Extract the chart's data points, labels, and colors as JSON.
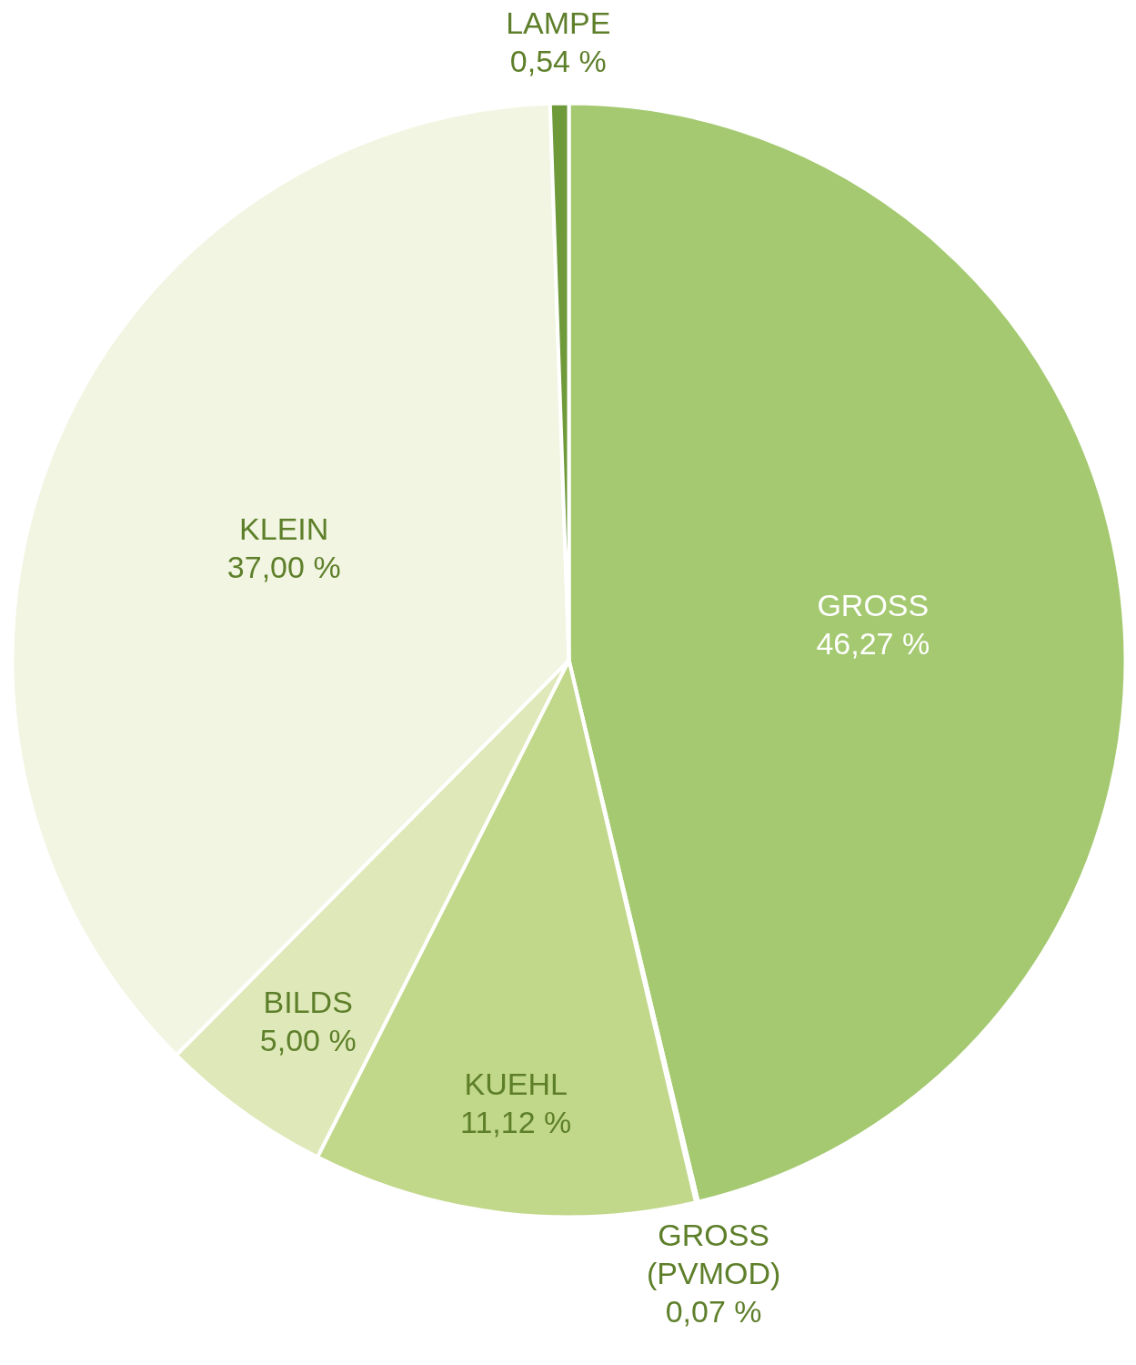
{
  "chart_data": {
    "type": "pie",
    "categories": [
      "GROSS",
      "GROSS (PVMOD)",
      "KUEHL",
      "BILDS",
      "KLEIN",
      "LAMPE"
    ],
    "values": [
      46.27,
      0.07,
      11.12,
      5.0,
      37.0,
      0.54
    ],
    "value_labels": [
      "46,27 %",
      "0,07 %",
      "11,12 %",
      "5,00 %",
      "37,00 %",
      "0,54 %"
    ],
    "colors": [
      "#a4c970",
      "#7ea94a",
      "#c1d78a",
      "#dee8b8",
      "#f1f5e1",
      "#6f9a3a"
    ]
  }
}
